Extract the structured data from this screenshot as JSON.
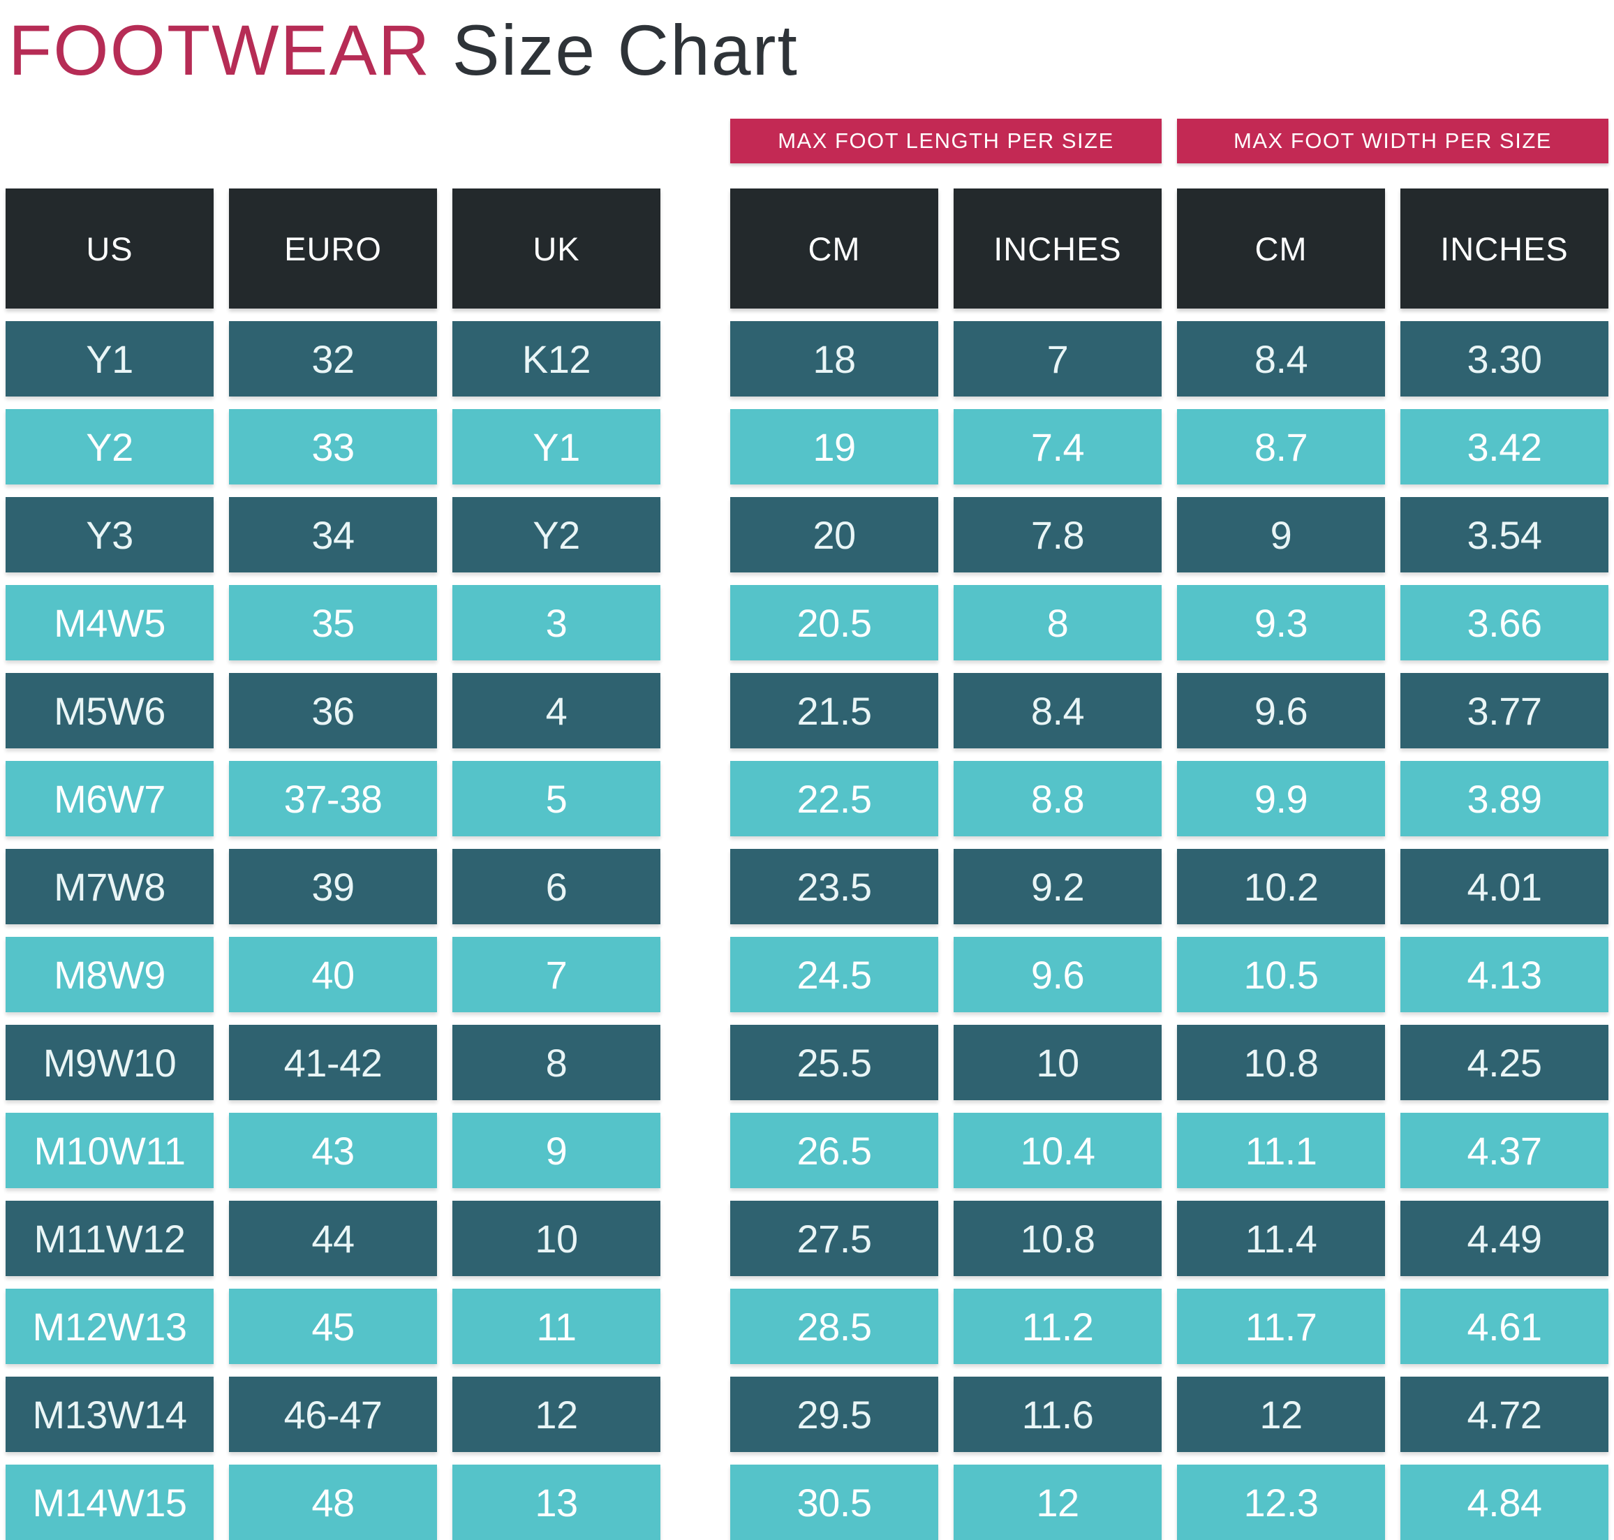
{
  "title": {
    "accent": "FOOTWEAR",
    "rest": "Size Chart"
  },
  "banners": [
    {
      "label": "MAX FOOT LENGTH PER SIZE"
    },
    {
      "label": "MAX FOOT WIDTH PER SIZE"
    }
  ],
  "chart_data": {
    "type": "table",
    "title": "FOOTWEAR Size Chart",
    "column_groups": [
      {
        "label": "MAX FOOT LENGTH PER SIZE",
        "columns": [
          "CM",
          "INCHES"
        ]
      },
      {
        "label": "MAX FOOT WIDTH PER SIZE",
        "columns": [
          "CM",
          "INCHES"
        ]
      }
    ],
    "columns": [
      "US",
      "EURO",
      "UK",
      "CM",
      "INCHES",
      "CM",
      "INCHES"
    ],
    "rows": [
      [
        "Y1",
        "32",
        "K12",
        "18",
        "7",
        "8.4",
        "3.30"
      ],
      [
        "Y2",
        "33",
        "Y1",
        "19",
        "7.4",
        "8.7",
        "3.42"
      ],
      [
        "Y3",
        "34",
        "Y2",
        "20",
        "7.8",
        "9",
        "3.54"
      ],
      [
        "M4W5",
        "35",
        "3",
        "20.5",
        "8",
        "9.3",
        "3.66"
      ],
      [
        "M5W6",
        "36",
        "4",
        "21.5",
        "8.4",
        "9.6",
        "3.77"
      ],
      [
        "M6W7",
        "37-38",
        "5",
        "22.5",
        "8.8",
        "9.9",
        "3.89"
      ],
      [
        "M7W8",
        "39",
        "6",
        "23.5",
        "9.2",
        "10.2",
        "4.01"
      ],
      [
        "M8W9",
        "40",
        "7",
        "24.5",
        "9.6",
        "10.5",
        "4.13"
      ],
      [
        "M9W10",
        "41-42",
        "8",
        "25.5",
        "10",
        "10.8",
        "4.25"
      ],
      [
        "M10W11",
        "43",
        "9",
        "26.5",
        "10.4",
        "11.1",
        "4.37"
      ],
      [
        "M11W12",
        "44",
        "10",
        "27.5",
        "10.8",
        "11.4",
        "4.49"
      ],
      [
        "M12W13",
        "45",
        "11",
        "28.5",
        "11.2",
        "11.7",
        "4.61"
      ],
      [
        "M13W14",
        "46-47",
        "12",
        "29.5",
        "11.6",
        "12",
        "4.72"
      ],
      [
        "M14W15",
        "48",
        "13",
        "30.5",
        "12",
        "12.3",
        "4.84"
      ]
    ]
  },
  "colors": {
    "accent_title": "#b62c55",
    "title_dark": "#2e3338",
    "banner_bg": "#c32954",
    "header_bg": "#23292c",
    "row_dark": "#2f6270",
    "row_light": "#55c3c9",
    "cell_text": "#ffffff",
    "background": "#ffffff"
  }
}
